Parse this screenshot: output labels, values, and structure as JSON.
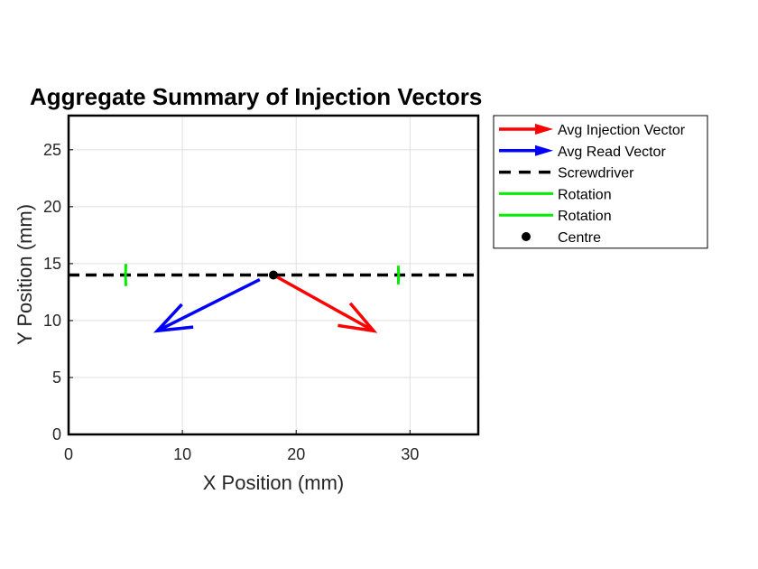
{
  "chart_data": {
    "type": "vector-plot",
    "title": "Aggregate Summary of Injection Vectors",
    "xlabel": "X Position (mm)",
    "ylabel": "Y Position (mm)",
    "xlim": [
      0,
      36
    ],
    "ylim": [
      0,
      28
    ],
    "xticks": [
      0,
      10,
      20,
      30
    ],
    "yticks": [
      0,
      5,
      10,
      15,
      20,
      25
    ],
    "grid": true,
    "legend_placement": "outside-right-top",
    "centre": {
      "x": 18,
      "y": 14
    },
    "screwdriver": {
      "y": 14,
      "x": [
        0,
        36
      ]
    },
    "vectors": [
      {
        "name": "Avg Injection Vector",
        "color": "#ff0000",
        "start": [
          18,
          14
        ],
        "end": [
          26.8,
          9.1
        ]
      },
      {
        "name": "Avg Read Vector",
        "color": "#0000ff",
        "start": [
          16.8,
          13.6
        ],
        "end": [
          7.8,
          9.1
        ]
      }
    ],
    "rotations": [
      {
        "name": "Rotation",
        "color": "#00ee00",
        "centre": [
          18,
          14
        ],
        "radius": 13,
        "side": "left"
      },
      {
        "name": "Rotation",
        "color": "#00ee00",
        "centre": [
          18,
          14
        ],
        "radius": 11,
        "side": "right"
      }
    ],
    "legend": [
      {
        "label": "Avg Injection Vector",
        "style": "arrow",
        "color": "#ff0000"
      },
      {
        "label": "Avg Read Vector",
        "style": "arrow",
        "color": "#0000ff"
      },
      {
        "label": "Screwdriver",
        "style": "dashed",
        "color": "#000000"
      },
      {
        "label": "Rotation",
        "style": "line",
        "color": "#00ee00"
      },
      {
        "label": "Rotation",
        "style": "line",
        "color": "#00ee00"
      },
      {
        "label": "Centre",
        "style": "dot",
        "color": "#000000"
      }
    ]
  }
}
